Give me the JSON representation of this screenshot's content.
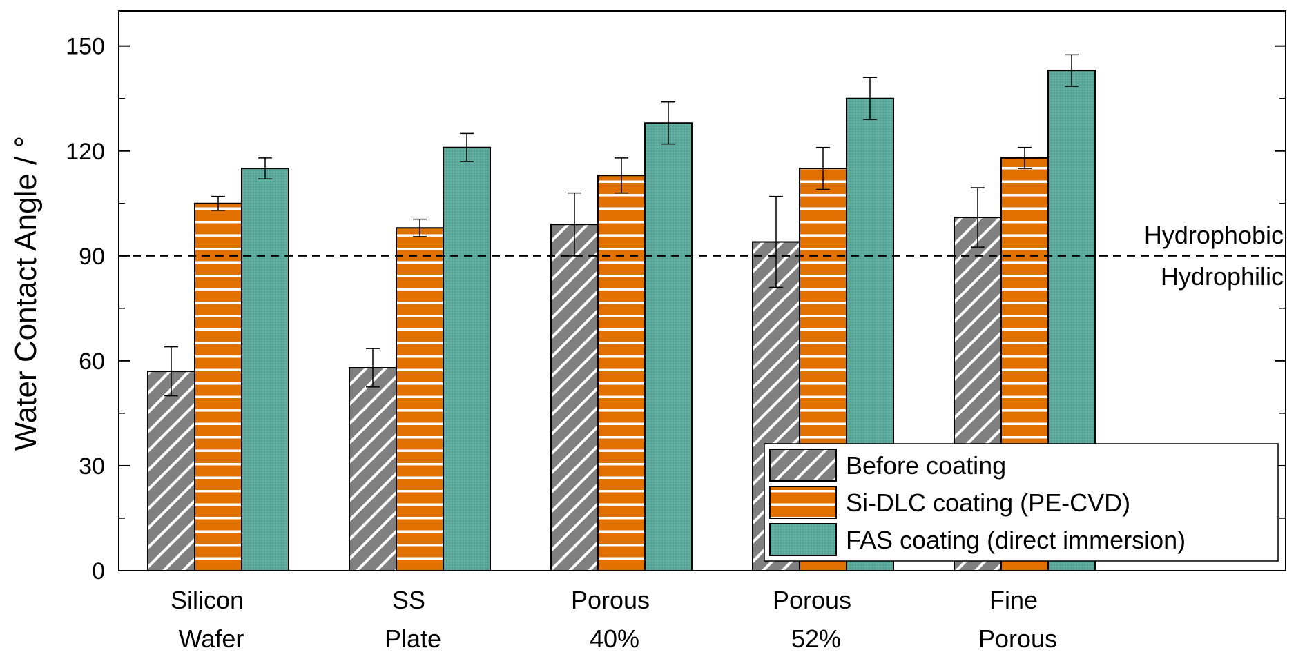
{
  "chart_data": {
    "type": "bar",
    "title": "",
    "xlabel": "",
    "ylabel": "Water Contact Angle / °",
    "ylim": [
      0,
      160
    ],
    "yticks": [
      0,
      30,
      60,
      90,
      120,
      150
    ],
    "categories": [
      {
        "line1": "Silicon",
        "line2": "Wafer"
      },
      {
        "line1": "SS",
        "line2": "Plate"
      },
      {
        "line1": "Porous",
        "line2": "40%"
      },
      {
        "line1": "Porous",
        "line2": "52%"
      },
      {
        "line1": "Fine",
        "line2": "Porous"
      }
    ],
    "series": [
      {
        "name": "Before coating",
        "pattern": "diagonal",
        "color": "#808080",
        "values": [
          57,
          58,
          99,
          94,
          101
        ],
        "errors": [
          7,
          5.5,
          9,
          13,
          8.5
        ]
      },
      {
        "name": "Si-DLC coating (PE-CVD)",
        "pattern": "horizontal",
        "color": "#e07000",
        "values": [
          105,
          98,
          113,
          115,
          118
        ],
        "errors": [
          2,
          2.5,
          5,
          6,
          3
        ]
      },
      {
        "name": "FAS coating (direct immersion)",
        "pattern": "dots",
        "color": "#5aa89a",
        "values": [
          115,
          121,
          128,
          135,
          143
        ],
        "errors": [
          3,
          4,
          6,
          6,
          4.5
        ]
      }
    ],
    "threshold": {
      "value": 90,
      "above_label": "Hydrophobic",
      "below_label": "Hydrophilic"
    },
    "legend": {
      "position": "bottom-right"
    }
  }
}
